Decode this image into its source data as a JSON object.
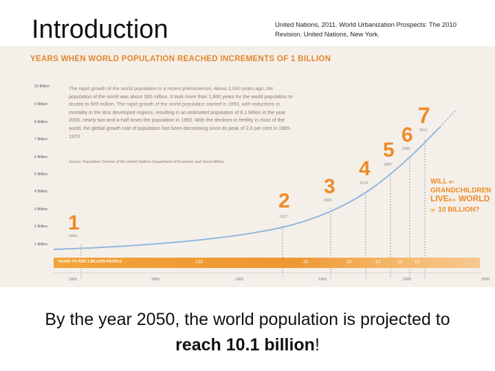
{
  "slide": {
    "title": "Introduction",
    "citation": "United Nations, 2011. World Urbanization Prospects: The 2010 Revision. United Nations, New York.",
    "caption_prefix": "By the year 2050, the world population is projected to ",
    "caption_bold": "reach 10.1 billion",
    "caption_suffix": "!"
  },
  "figure": {
    "heading": "YEARS WHEN WORLD POPULATION REACHED INCREMENTS OF 1 BILLION",
    "y_labels": [
      "10 Billion",
      "9 Billion",
      "8 Billion",
      "7 Billion",
      "6 Billion",
      "5 Billion",
      "4 Billion",
      "3 Billion",
      "2 Billion",
      "1 Billion"
    ],
    "intro_text": "The rapid growth of the world population is a recent phenomenon. About 2,000 years ago, the population of the world was about 300 million. It took more than 1,600 years for the world population to double to 600 million. The rapid growth of the world population started in 1950, with reductions in mortality in the less developed regions, resulting in an estimated population of 6.1 billion in the year 2000, nearly two-and-a-half times the population in 1950. With the declines in fertility in most of the world, the global growth rate of population has been decreasing since its peak of 2.0 per cent in 1965-1970.",
    "source": "Source: Population Division of the United Nations Department of Economic and Social Affairs",
    "milestones": [
      {
        "num": "1",
        "year": "1804"
      },
      {
        "num": "2",
        "year": "1927"
      },
      {
        "num": "3",
        "year": "1959"
      },
      {
        "num": "4",
        "year": "1974"
      },
      {
        "num": "5",
        "year": "1987"
      },
      {
        "num": "6",
        "year": "1999"
      },
      {
        "num": "7",
        "year": "2011"
      }
    ],
    "band_label": "YEARS TO ADD 1 BILLION PEOPLE",
    "spans": [
      "123",
      "32",
      "15",
      "13",
      "12",
      "12"
    ],
    "x_ticks": [
      "1800",
      "1850",
      "1900",
      "1950",
      "2000",
      "2050"
    ],
    "callout": {
      "l1a": "WILL",
      "l1b": "MY",
      "l2": "GRANDCHILDREN",
      "l3a": "LIVE",
      "l3b": "IN A",
      "l3c": "WORLD",
      "l4a": "OF",
      "l4b": "10 BILLION?"
    },
    "colors": {
      "accent": "#ef8b26",
      "background": "#f5efe9"
    }
  }
}
